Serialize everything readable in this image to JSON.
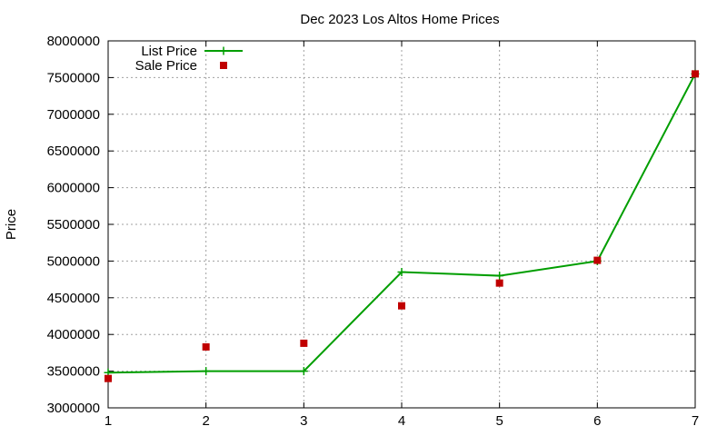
{
  "chart_data": {
    "type": "line",
    "title": "Dec 2023 Los Altos Home Prices",
    "xlabel": "",
    "ylabel": "Price",
    "xlim": [
      1,
      7
    ],
    "ylim": [
      3000000,
      8000000
    ],
    "x_ticks": [
      "1",
      "2",
      "3",
      "4",
      "5",
      "6",
      "7"
    ],
    "y_ticks": [
      "3000000",
      "3500000",
      "4000000",
      "4500000",
      "5000000",
      "5500000",
      "6000000",
      "6500000",
      "7000000",
      "7500000",
      "8000000"
    ],
    "grid": true,
    "legend_position": "top-left",
    "series": [
      {
        "name": "List Price",
        "style": "line-points",
        "marker": "plus",
        "color": "#009e00",
        "x": [
          1,
          2,
          3,
          4,
          5,
          6,
          7
        ],
        "values": [
          3480000,
          3500000,
          3500000,
          4850000,
          4800000,
          5000000,
          7550000
        ]
      },
      {
        "name": "Sale Price",
        "style": "points",
        "marker": "square",
        "color": "#c00000",
        "x": [
          1,
          2,
          3,
          4,
          5,
          6,
          7
        ],
        "values": [
          3400000,
          3830000,
          3880000,
          4390000,
          4700000,
          5010000,
          7550000
        ]
      }
    ]
  }
}
